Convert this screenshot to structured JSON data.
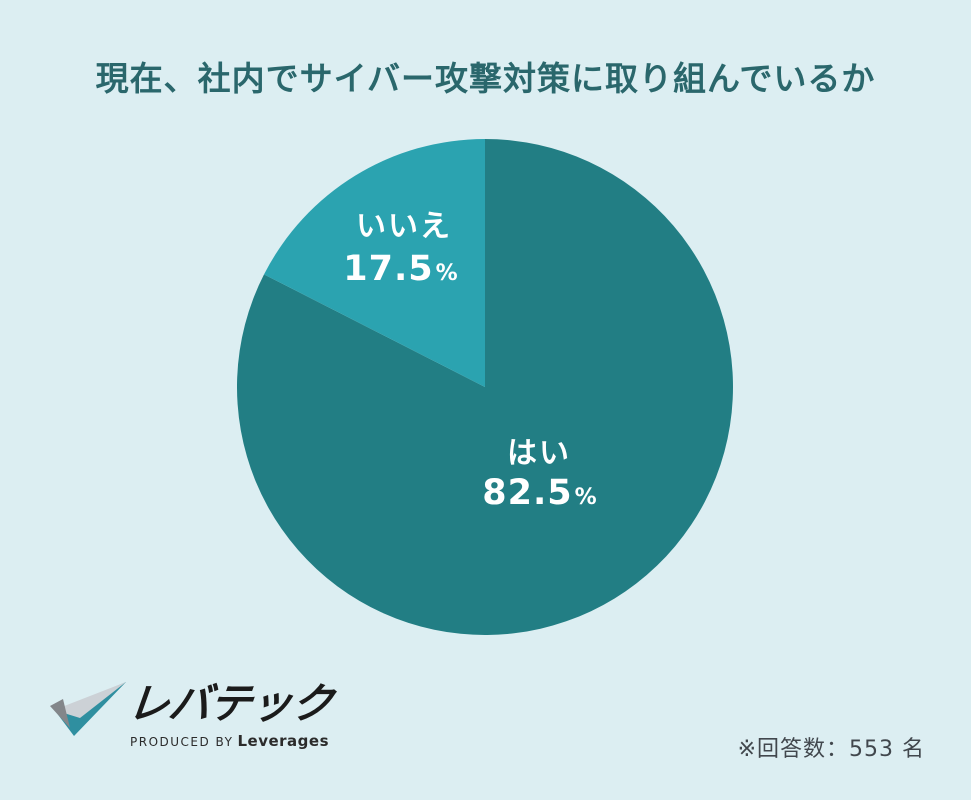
{
  "title": "現在、社内でサイバー攻撃対策に取り組んでいるか",
  "chart_data": {
    "type": "pie",
    "title": "現在、社内でサイバー攻撃対策に取り組んでいるか",
    "unit": "%",
    "start_angle_deg": 0,
    "direction": "clockwise",
    "slices": [
      {
        "label": "はい",
        "value": 82.5,
        "display": "82.5",
        "unit": "%",
        "color": "#227e84"
      },
      {
        "label": "いいえ",
        "value": 17.5,
        "display": "17.5",
        "unit": "%",
        "color": "#2ba3b0"
      }
    ],
    "label_color": "#ffffff",
    "legend": "none",
    "background": "#dceef2"
  },
  "footer": {
    "logo": {
      "brand": "レバテック",
      "tagline_prefix": "PRODUCED BY",
      "tagline_brand": "Leverages",
      "icon": "levtech-check-icon",
      "icon_colors": {
        "teal": "#2f8fa0",
        "silver": "#ccd1d6",
        "gray": "#83868a"
      }
    },
    "note": "※回答数：553 名"
  },
  "colors": {
    "background": "#dceef2",
    "title_text": "#2a676c",
    "slice_yes": "#227e84",
    "slice_no": "#2ba3b0",
    "note_text": "#41474d",
    "logo_text": "#1b1b1b"
  }
}
